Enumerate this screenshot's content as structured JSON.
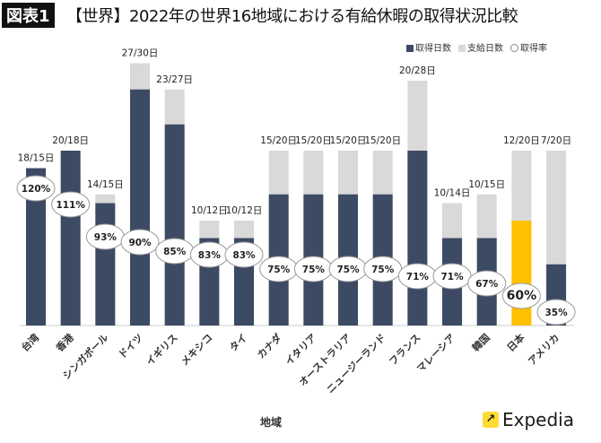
{
  "badge": "図表1",
  "title": "【世界】2022年の世界16地域における有給休暇の取得状況比較",
  "logo_text": "Expedia",
  "chart_data": {
    "type": "bar",
    "stacking": "overlap",
    "xlabel": "地域",
    "legend_position": "top-right",
    "categories": [
      "台湾",
      "香港",
      "シンガポール",
      "ドイツ",
      "イギリス",
      "メキシコ",
      "タイ",
      "カナダ",
      "イタリア",
      "オーストラリア",
      "ニュージーランド",
      "フランス",
      "マレーシア",
      "韓国",
      "日本",
      "アメリカ"
    ],
    "series": [
      {
        "name": "取得日数",
        "color": "#3d4a64",
        "values": [
          18,
          20,
          14,
          27,
          23,
          10,
          10,
          15,
          15,
          15,
          15,
          20,
          10,
          10,
          12,
          7
        ]
      },
      {
        "name": "支給日数",
        "color": "#d9d9d9",
        "values": [
          15,
          18,
          15,
          30,
          27,
          12,
          12,
          20,
          20,
          20,
          20,
          28,
          14,
          15,
          20,
          20
        ]
      },
      {
        "name": "取得率",
        "marker": "ellipse",
        "values": [
          120,
          111,
          93,
          90,
          85,
          83,
          83,
          75,
          75,
          75,
          75,
          71,
          71,
          67,
          60,
          35
        ]
      }
    ],
    "bar_labels": [
      "18/15日",
      "20/18日",
      "14/15日",
      "27/30日",
      "23/27日",
      "10/12日",
      "10/12日",
      "15/20日",
      "15/20日",
      "15/20日",
      "15/20日",
      "20/28日",
      "10/14日",
      "10/15日",
      "12/20日",
      "7/20日"
    ],
    "rate_labels": [
      "120%",
      "111%",
      "93%",
      "90%",
      "85%",
      "83%",
      "83%",
      "75%",
      "75%",
      "75%",
      "75%",
      "71%",
      "71%",
      "67%",
      "60%",
      "35%"
    ],
    "highlight": {
      "category": "日本",
      "color": "#ffc000"
    },
    "grid": false
  }
}
